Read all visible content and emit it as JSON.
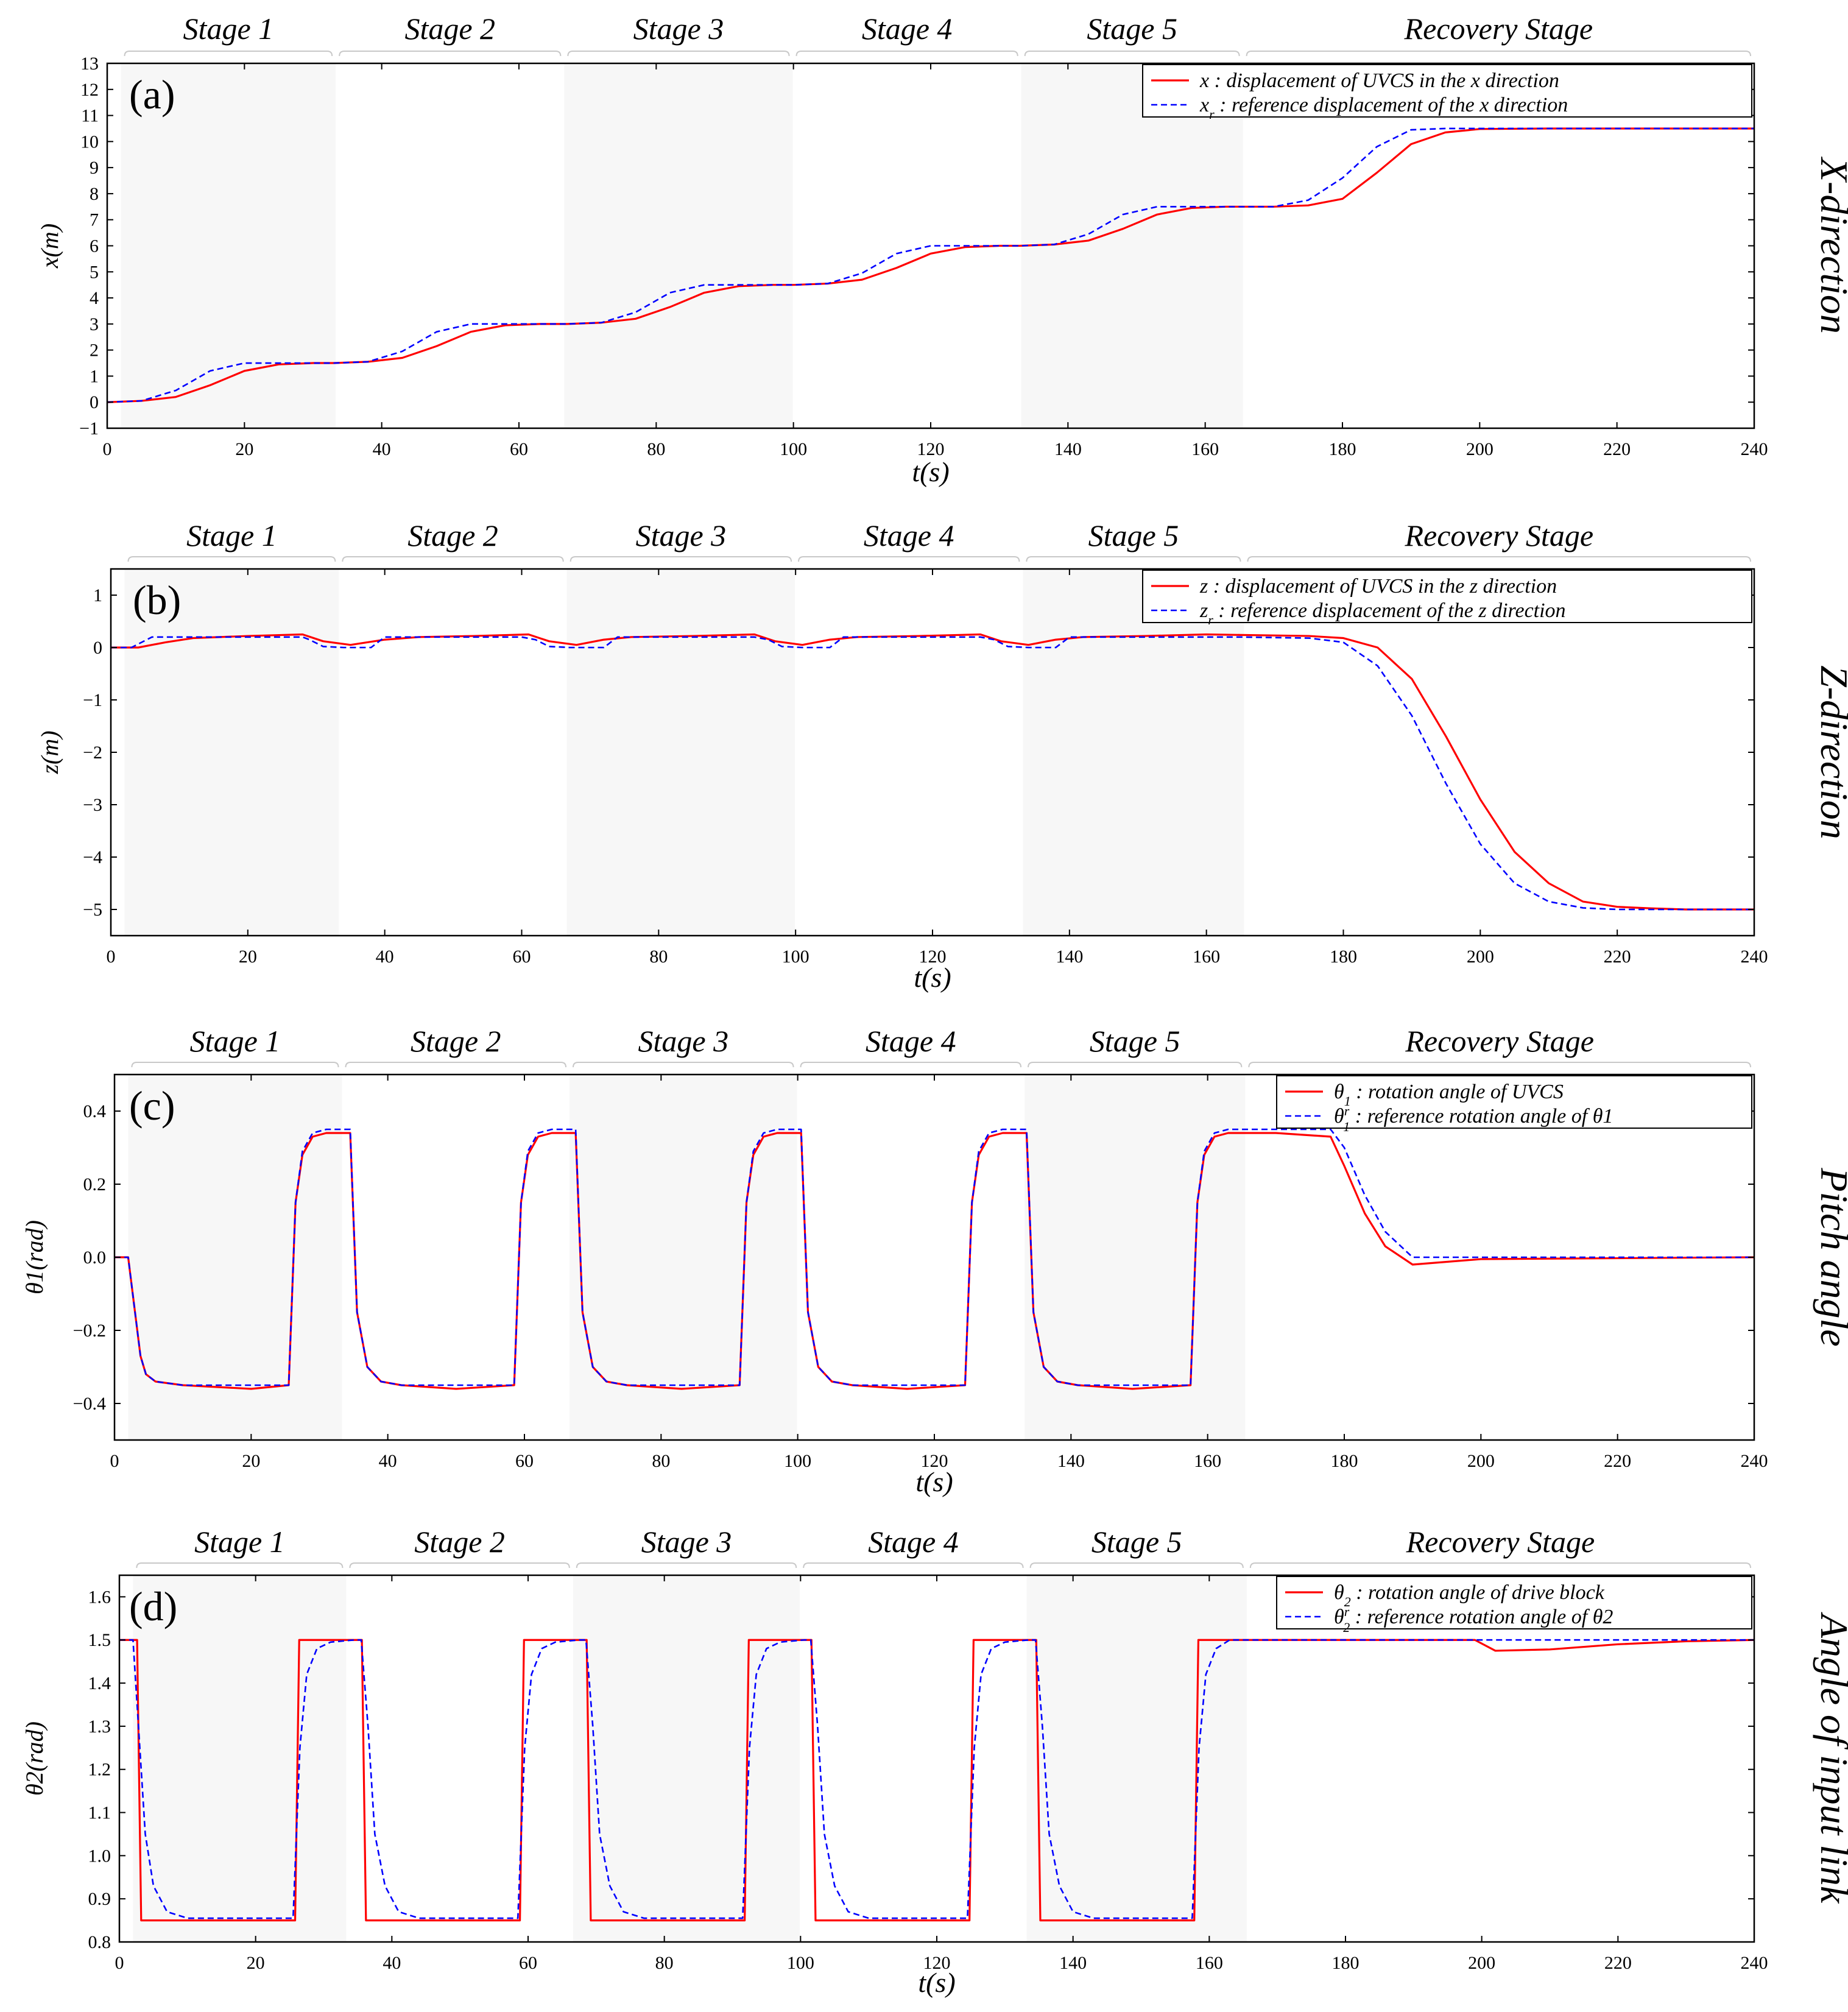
{
  "figure": {
    "colors": {
      "actual": "#ff0000",
      "reference": "#0000ff",
      "stage_shade": "#f7f7f7",
      "axis": "#000000",
      "bracket": "#c8c8c8"
    },
    "stage_names": [
      "Stage 1",
      "Stage 2",
      "Stage 3",
      "Stage 4",
      "Stage 5",
      "Recovery Stage"
    ],
    "stage_bounds": [
      [
        2,
        33.3
      ],
      [
        33.3,
        66.6
      ],
      [
        66.6,
        99.9
      ],
      [
        99.9,
        133.2
      ],
      [
        133.2,
        165.5
      ],
      [
        165.5,
        240
      ]
    ],
    "shaded_stages": [
      0,
      2,
      4
    ]
  },
  "chart_data": [
    {
      "type": "line",
      "id": "a",
      "panel_label": "(a)",
      "side_title": "X-direction",
      "xlabel": "t(s)",
      "ylabel": "x(m)",
      "xlim": [
        0,
        240
      ],
      "ylim": [
        -1,
        13
      ],
      "xticks": [
        0,
        20,
        40,
        60,
        80,
        100,
        120,
        140,
        160,
        180,
        200,
        220,
        240
      ],
      "yticks": [
        -1,
        0,
        1,
        2,
        3,
        4,
        5,
        6,
        7,
        8,
        9,
        10,
        11,
        12,
        13
      ],
      "ytick_labels": [
        "−1",
        "0",
        "1",
        "2",
        "3",
        "4",
        "5",
        "6",
        "7",
        "8",
        "9",
        "10",
        "11",
        "12",
        "13"
      ],
      "legend": [
        {
          "symbol": "x",
          "sub": "",
          "sup": "",
          "text": " : displacement of UVCS in the x direction"
        },
        {
          "symbol": "x",
          "sub": "r",
          "sup": "",
          "text": " : reference displacement of the x direction"
        }
      ],
      "series": [
        {
          "name": "x",
          "style": "solid",
          "x": [
            0,
            5,
            10,
            15,
            20,
            25,
            30,
            33,
            38,
            43,
            48,
            53,
            58,
            63,
            67,
            72,
            77,
            82,
            87,
            92,
            97,
            100,
            105,
            110,
            115,
            120,
            125,
            130,
            133,
            138,
            143,
            148,
            153,
            158,
            163,
            166,
            170,
            175,
            180,
            185,
            190,
            195,
            200,
            210,
            220,
            240
          ],
          "y": [
            0,
            0.05,
            0.2,
            0.65,
            1.2,
            1.45,
            1.5,
            1.5,
            1.55,
            1.7,
            2.15,
            2.7,
            2.95,
            3.0,
            3.0,
            3.05,
            3.2,
            3.65,
            4.2,
            4.45,
            4.5,
            4.5,
            4.55,
            4.7,
            5.15,
            5.7,
            5.95,
            6.0,
            6.0,
            6.05,
            6.2,
            6.65,
            7.2,
            7.45,
            7.5,
            7.5,
            7.5,
            7.55,
            7.8,
            8.8,
            9.9,
            10.35,
            10.48,
            10.5,
            10.5,
            10.5
          ]
        },
        {
          "name": "x_r",
          "style": "dashed",
          "x": [
            0,
            5,
            10,
            15,
            20,
            25,
            30,
            33,
            38,
            43,
            48,
            53,
            58,
            63,
            67,
            72,
            77,
            82,
            87,
            92,
            97,
            100,
            105,
            110,
            115,
            120,
            125,
            130,
            133,
            138,
            143,
            148,
            153,
            158,
            163,
            166,
            170,
            175,
            180,
            185,
            190,
            195,
            200,
            210,
            220,
            240
          ],
          "y": [
            0,
            0.05,
            0.45,
            1.2,
            1.5,
            1.5,
            1.5,
            1.5,
            1.55,
            1.95,
            2.7,
            3.0,
            3.0,
            3.0,
            3.0,
            3.05,
            3.45,
            4.2,
            4.5,
            4.5,
            4.5,
            4.5,
            4.55,
            4.95,
            5.7,
            6.0,
            6.0,
            6.0,
            6.0,
            6.05,
            6.45,
            7.2,
            7.5,
            7.5,
            7.5,
            7.5,
            7.5,
            7.75,
            8.6,
            9.8,
            10.45,
            10.5,
            10.5,
            10.5,
            10.5,
            10.5
          ]
        }
      ]
    },
    {
      "type": "line",
      "id": "b",
      "panel_label": "(b)",
      "side_title": "Z-direction",
      "xlabel": "t(s)",
      "ylabel": "z(m)",
      "xlim": [
        0,
        240
      ],
      "ylim": [
        -5.5,
        1.5
      ],
      "xticks": [
        0,
        20,
        40,
        60,
        80,
        100,
        120,
        140,
        160,
        180,
        200,
        220,
        240
      ],
      "yticks": [
        -5,
        -4,
        -3,
        -2,
        -1,
        0,
        1
      ],
      "ytick_labels": [
        "−5",
        "−4",
        "−3",
        "−2",
        "−1",
        "0",
        "1"
      ],
      "legend": [
        {
          "symbol": "z",
          "sub": "",
          "sup": "",
          "text": " : displacement of UVCS in the z direction"
        },
        {
          "symbol": "z",
          "sub": "r",
          "sup": "",
          "text": " : reference displacement of the z direction"
        }
      ],
      "series": [
        {
          "name": "z",
          "style": "solid",
          "x": [
            0,
            4,
            8,
            12,
            20,
            28,
            31,
            35,
            40,
            45,
            53,
            61,
            64,
            68,
            72,
            76,
            85,
            94,
            97,
            101,
            105,
            109,
            118,
            127,
            130,
            134,
            138,
            142,
            151,
            160,
            165,
            175,
            180,
            185,
            190,
            195,
            200,
            205,
            210,
            215,
            220,
            225,
            230,
            240
          ],
          "y": [
            0,
            0,
            0.1,
            0.18,
            0.22,
            0.25,
            0.12,
            0.05,
            0.15,
            0.2,
            0.22,
            0.25,
            0.12,
            0.05,
            0.15,
            0.2,
            0.22,
            0.25,
            0.12,
            0.05,
            0.15,
            0.2,
            0.22,
            0.25,
            0.12,
            0.05,
            0.15,
            0.2,
            0.22,
            0.25,
            0.24,
            0.22,
            0.18,
            0.0,
            -0.6,
            -1.7,
            -2.9,
            -3.9,
            -4.5,
            -4.85,
            -4.95,
            -4.98,
            -5.0,
            -5.0
          ]
        },
        {
          "name": "z_r",
          "style": "dashed",
          "x": [
            0,
            3,
            6,
            20,
            28,
            29,
            31,
            34,
            38,
            40,
            55,
            60,
            62,
            64,
            67,
            72,
            74,
            89,
            94,
            96,
            98,
            101,
            105,
            107,
            122,
            127,
            129,
            131,
            134,
            138,
            140,
            155,
            160,
            165,
            175,
            180,
            185,
            190,
            195,
            200,
            205,
            210,
            215,
            220,
            240
          ],
          "y": [
            0,
            0,
            0.2,
            0.2,
            0.2,
            0.15,
            0.02,
            0,
            0,
            0.2,
            0.2,
            0.2,
            0.15,
            0.02,
            0,
            0,
            0.2,
            0.2,
            0.2,
            0.15,
            0.02,
            0,
            0,
            0.2,
            0.2,
            0.2,
            0.15,
            0.02,
            0,
            0,
            0.2,
            0.2,
            0.2,
            0.2,
            0.18,
            0.1,
            -0.35,
            -1.3,
            -2.6,
            -3.75,
            -4.5,
            -4.85,
            -4.97,
            -5.0,
            -5.0
          ]
        }
      ]
    },
    {
      "type": "line",
      "id": "c",
      "panel_label": "(c)",
      "side_title": "Pitch angle",
      "xlabel": "t(s)",
      "ylabel": "θ1(rad)",
      "xlim": [
        0,
        240
      ],
      "ylim": [
        -0.5,
        0.5
      ],
      "xticks": [
        0,
        20,
        40,
        60,
        80,
        100,
        120,
        140,
        160,
        180,
        200,
        220,
        240
      ],
      "yticks": [
        -0.4,
        -0.2,
        0.0,
        0.2,
        0.4
      ],
      "ytick_labels": [
        "−0.4",
        "−0.2",
        "0.0",
        "0.2",
        "0.4"
      ],
      "legend": [
        {
          "symbol": "θ",
          "sub": "1",
          "sup": "",
          "text": " : rotation angle of UVCS"
        },
        {
          "symbol": "θ",
          "sub": "1",
          "sup": "r",
          "text": " : reference rotation angle of θ1"
        }
      ],
      "series": [
        {
          "name": "θ1",
          "style": "solid",
          "x": [
            0,
            2,
            3,
            3.8,
            4.6,
            6,
            10,
            20,
            25.5,
            26.5,
            27.5,
            29,
            31,
            34.5,
            35.5,
            37,
            39,
            42,
            50,
            58.5,
            59.5,
            60.5,
            62,
            64,
            67.5,
            68.5,
            70,
            72,
            75,
            83,
            91.5,
            92.5,
            93.5,
            95,
            97,
            100.5,
            101.5,
            103,
            105,
            108,
            116,
            124.5,
            125.5,
            126.5,
            128,
            130,
            133.5,
            134.5,
            136,
            138,
            141,
            149,
            157.5,
            158.5,
            159.5,
            161,
            163,
            170,
            178,
            180,
            183,
            186,
            190,
            200,
            240
          ],
          "y": [
            0,
            0,
            -0.15,
            -0.27,
            -0.32,
            -0.34,
            -0.35,
            -0.36,
            -0.35,
            0.15,
            0.28,
            0.33,
            0.34,
            0.34,
            -0.15,
            -0.3,
            -0.34,
            -0.35,
            -0.36,
            -0.35,
            0.15,
            0.28,
            0.33,
            0.34,
            0.34,
            -0.15,
            -0.3,
            -0.34,
            -0.35,
            -0.36,
            -0.35,
            0.15,
            0.28,
            0.33,
            0.34,
            0.34,
            -0.15,
            -0.3,
            -0.34,
            -0.35,
            -0.36,
            -0.35,
            0.15,
            0.28,
            0.33,
            0.34,
            0.34,
            -0.15,
            -0.3,
            -0.34,
            -0.35,
            -0.36,
            -0.35,
            0.15,
            0.28,
            0.33,
            0.34,
            0.34,
            0.33,
            0.25,
            0.12,
            0.03,
            -0.02,
            -0.005,
            0
          ]
        },
        {
          "name": "θ1r",
          "style": "dashed",
          "x": [
            0,
            2,
            3,
            3.8,
            4.6,
            6,
            10,
            25.5,
            26.5,
            27.5,
            29,
            31,
            34.5,
            35.5,
            37,
            39,
            42,
            58.5,
            59.5,
            60.5,
            62,
            64,
            67.5,
            68.5,
            70,
            72,
            75,
            91.5,
            92.5,
            93.5,
            95,
            97,
            100.5,
            101.5,
            103,
            105,
            108,
            124.5,
            125.5,
            126.5,
            128,
            130,
            133.5,
            134.5,
            136,
            138,
            141,
            157.5,
            158.5,
            159.5,
            161,
            163,
            178,
            180,
            183,
            186,
            190,
            240
          ],
          "y": [
            0,
            0,
            -0.15,
            -0.27,
            -0.32,
            -0.34,
            -0.35,
            -0.35,
            0.15,
            0.29,
            0.34,
            0.35,
            0.35,
            -0.15,
            -0.3,
            -0.34,
            -0.35,
            -0.35,
            0.15,
            0.29,
            0.34,
            0.35,
            0.35,
            -0.15,
            -0.3,
            -0.34,
            -0.35,
            -0.35,
            0.15,
            0.29,
            0.34,
            0.35,
            0.35,
            -0.15,
            -0.3,
            -0.34,
            -0.35,
            -0.35,
            0.15,
            0.29,
            0.34,
            0.35,
            0.35,
            -0.15,
            -0.3,
            -0.34,
            -0.35,
            -0.35,
            0.15,
            0.29,
            0.34,
            0.35,
            0.35,
            0.3,
            0.17,
            0.07,
            0.0,
            0
          ]
        }
      ]
    },
    {
      "type": "line",
      "id": "d",
      "panel_label": "(d)",
      "side_title": "Angle of input link",
      "xlabel": "t(s)",
      "ylabel": "θ2(rad)",
      "xlim": [
        0,
        240
      ],
      "ylim": [
        0.8,
        1.65
      ],
      "xticks": [
        0,
        20,
        40,
        60,
        80,
        100,
        120,
        140,
        160,
        180,
        200,
        220,
        240
      ],
      "yticks": [
        0.8,
        0.9,
        1.0,
        1.1,
        1.2,
        1.3,
        1.4,
        1.5,
        1.6
      ],
      "ytick_labels": [
        "0.8",
        "0.9",
        "1.0",
        "1.1",
        "1.2",
        "1.3",
        "1.4",
        "1.5",
        "1.6"
      ],
      "legend": [
        {
          "symbol": "θ",
          "sub": "2",
          "sup": "",
          "text": " : rotation angle of drive block"
        },
        {
          "symbol": "θ",
          "sub": "2",
          "sup": "r",
          "text": " : reference rotation angle of θ2"
        }
      ],
      "series": [
        {
          "name": "θ2",
          "style": "solid",
          "x": [
            0,
            2.6,
            3.2,
            25.8,
            26.4,
            35.6,
            36.2,
            58.8,
            59.4,
            68.6,
            69.2,
            91.8,
            92.4,
            101.6,
            102.2,
            124.8,
            125.4,
            134.6,
            135.2,
            157.8,
            158.4,
            199,
            202,
            210,
            220,
            230,
            240
          ],
          "y": [
            1.5,
            1.5,
            0.85,
            0.85,
            1.5,
            1.5,
            0.85,
            0.85,
            1.5,
            1.5,
            0.85,
            0.85,
            1.5,
            1.5,
            0.85,
            0.85,
            1.5,
            1.5,
            0.85,
            0.85,
            1.5,
            1.5,
            1.475,
            1.478,
            1.49,
            1.497,
            1.5
          ]
        },
        {
          "name": "θ2r",
          "style": "dashed",
          "x": [
            0,
            2,
            2.8,
            3.8,
            5,
            7,
            10,
            25.5,
            26.5,
            27.5,
            29,
            31,
            34.5,
            35.5,
            36.5,
            37.5,
            39,
            41,
            44,
            58.5,
            59.5,
            60.5,
            62,
            64,
            67.5,
            68.5,
            69.5,
            70.5,
            72,
            74,
            77,
            91.5,
            92.5,
            93.5,
            95,
            97,
            100.5,
            101.5,
            102.5,
            103.5,
            105,
            107,
            110,
            124.5,
            125.5,
            126.5,
            128,
            130,
            133.5,
            134.5,
            135.5,
            136.5,
            138,
            140,
            143,
            157.5,
            158.5,
            159.5,
            161,
            163,
            240
          ],
          "y": [
            1.5,
            1.5,
            1.3,
            1.05,
            0.93,
            0.87,
            0.855,
            0.855,
            1.25,
            1.42,
            1.48,
            1.495,
            1.5,
            1.5,
            1.3,
            1.05,
            0.93,
            0.87,
            0.855,
            0.855,
            1.25,
            1.42,
            1.48,
            1.495,
            1.5,
            1.5,
            1.3,
            1.05,
            0.93,
            0.87,
            0.855,
            0.855,
            1.25,
            1.42,
            1.48,
            1.495,
            1.5,
            1.5,
            1.3,
            1.05,
            0.93,
            0.87,
            0.855,
            0.855,
            1.25,
            1.42,
            1.48,
            1.495,
            1.5,
            1.5,
            1.3,
            1.05,
            0.93,
            0.87,
            0.855,
            0.855,
            1.25,
            1.42,
            1.48,
            1.5,
            1.5
          ]
        }
      ]
    }
  ]
}
